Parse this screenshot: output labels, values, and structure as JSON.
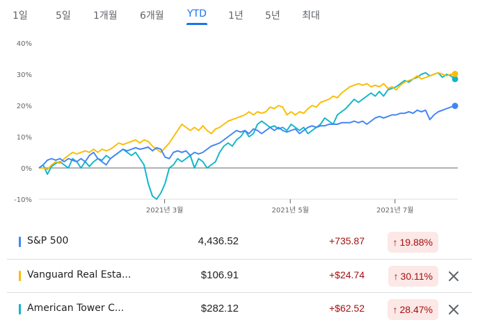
{
  "tabs": [
    {
      "label": "1일",
      "active": false
    },
    {
      "label": "5일",
      "active": false
    },
    {
      "label": "1개월",
      "active": false
    },
    {
      "label": "6개월",
      "active": false
    },
    {
      "label": "YTD",
      "active": true
    },
    {
      "label": "1년",
      "active": false
    },
    {
      "label": "5년",
      "active": false
    },
    {
      "label": "최대",
      "active": false
    }
  ],
  "chart_data": {
    "type": "line",
    "title": "",
    "xlabel": "",
    "ylabel": "",
    "ylim": [
      -10,
      40
    ],
    "y_ticks": [
      "40%",
      "30%",
      "20%",
      "10%",
      "0%",
      "-10%"
    ],
    "y_tick_values": [
      40,
      30,
      20,
      10,
      0,
      -10
    ],
    "x_tick_labels": [
      "2021년 3월",
      "2021년 5월",
      "2021년 7월"
    ],
    "x_tick_positions": [
      0.3,
      0.6,
      0.85
    ],
    "grid": false,
    "baseline": 0,
    "series": [
      {
        "name": "S&P 500",
        "color": "#4285f4",
        "values": [
          0,
          1,
          2.5,
          3,
          2.5,
          3,
          2,
          3,
          2.5,
          2,
          3,
          2,
          4,
          5,
          3,
          2,
          1,
          3,
          4,
          5,
          6,
          5.5,
          6,
          6.5,
          6,
          6.3,
          6.7,
          5.5,
          6.5,
          6,
          3.5,
          3,
          5,
          5.5,
          5,
          5.5,
          4,
          5,
          4.5,
          5,
          6,
          7,
          7.5,
          8,
          9,
          10,
          11,
          12,
          11.5,
          12,
          11,
          12.5,
          12,
          11,
          12,
          13,
          12,
          13,
          12,
          11.5,
          12,
          12.5,
          11,
          12,
          13,
          13.5,
          13,
          13.5,
          13.5,
          14,
          14,
          14,
          14.5,
          14.5,
          14.5,
          15,
          14.5,
          15,
          14,
          15,
          16,
          16.5,
          16,
          16.5,
          17,
          17,
          17.5,
          17.5,
          18,
          17.5,
          18.5,
          18,
          18.5,
          15.5,
          17,
          18,
          18.5,
          19,
          19.5,
          19.88
        ]
      },
      {
        "name": "Vanguard Real Estate Index Fund ETF",
        "color": "#fbbc04",
        "values": [
          0,
          0,
          -0.5,
          1,
          2,
          1.5,
          3,
          4,
          5,
          4.5,
          5,
          5.5,
          5,
          6,
          5,
          6,
          5.5,
          6,
          7,
          8,
          7.5,
          8,
          8.5,
          9,
          8,
          9,
          8.5,
          7,
          6,
          5,
          6.5,
          8,
          10,
          12,
          14,
          13,
          12,
          13,
          12,
          13.5,
          12,
          11,
          12.5,
          13,
          14,
          15,
          15.5,
          16,
          16.5,
          17,
          18,
          17,
          18,
          17.5,
          18,
          19.5,
          19,
          20,
          19.5,
          17,
          18,
          17,
          18,
          17.5,
          19,
          20,
          19.5,
          21,
          21.5,
          22,
          23,
          22.5,
          24,
          25,
          26,
          26.5,
          27,
          26.5,
          27,
          26,
          26.5,
          26,
          27,
          25.5,
          26,
          25,
          26.5,
          27.5,
          28,
          28.5,
          29.5,
          28.5,
          29,
          29.5,
          30,
          30.5,
          30,
          29.5,
          30,
          30.11
        ]
      },
      {
        "name": "American Tower Corporation",
        "color": "#12b5cb",
        "values": [
          0,
          1,
          -2,
          0.5,
          1.5,
          2,
          1,
          0,
          3,
          2,
          0,
          2,
          0.5,
          2,
          3,
          2.5,
          4,
          3,
          4,
          5,
          6,
          5,
          4,
          5,
          3,
          1,
          -5,
          -9,
          -10,
          -8,
          -5,
          0,
          1,
          3,
          2,
          3,
          4,
          0,
          3,
          2,
          0,
          1,
          2,
          5,
          7,
          8,
          7,
          9,
          10,
          12,
          10,
          11,
          14,
          15,
          14,
          13,
          13.5,
          12.5,
          13,
          12,
          14,
          13,
          12,
          13,
          11,
          12,
          13,
          14,
          16,
          15,
          14,
          17,
          18,
          19,
          20.5,
          22,
          21,
          22,
          23,
          24,
          23,
          24.5,
          23,
          25,
          25.5,
          26,
          27,
          28,
          27.5,
          28.5,
          29,
          30,
          30.5,
          29.5,
          30,
          30.5,
          29,
          30,
          29.5,
          28.47
        ]
      }
    ]
  },
  "holdings": [
    {
      "name": "S&P 500",
      "price": "4,436.52",
      "change": "+735.87",
      "percent": "19.88%",
      "arrow": "↑",
      "color": "#4285f4",
      "removable": false
    },
    {
      "name": "Vanguard Real Esta...",
      "price": "$106.91",
      "change": "+$24.74",
      "percent": "30.11%",
      "arrow": "↑",
      "color": "#fbbc04",
      "removable": true
    },
    {
      "name": "American Tower C...",
      "price": "$282.12",
      "change": "+$62.52",
      "percent": "28.47%",
      "arrow": "↑",
      "color": "#12b5cb",
      "removable": true
    }
  ],
  "icons": {
    "remove": "close-icon",
    "trend": "arrow-up-icon"
  }
}
